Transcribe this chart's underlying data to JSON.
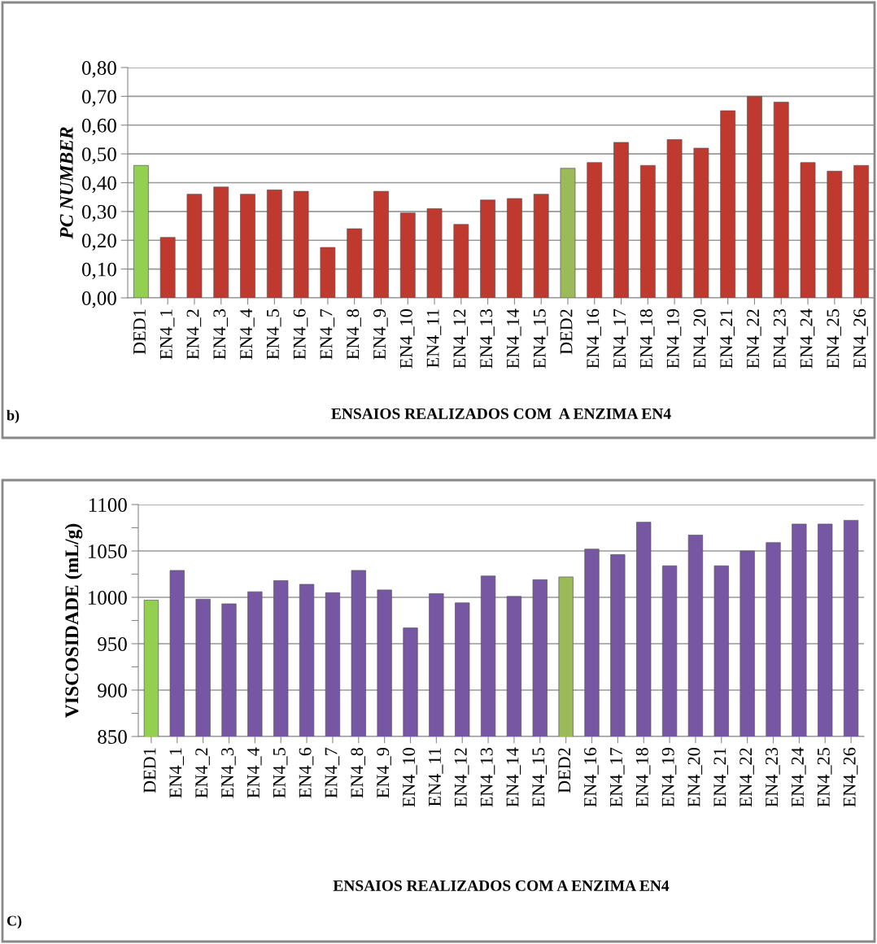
{
  "chart_data": [
    {
      "type": "bar",
      "ylabel": "PC NUMBER",
      "xlabel": "ENSAIOS REALIZADOS COM  A ENZIMA EN4",
      "annotations": [
        "b)"
      ],
      "categories": [
        "DED1",
        "EN4_1",
        "EN4_2",
        "EN4_3",
        "EN4_4",
        "EN4_5",
        "EN4_6",
        "EN4_7",
        "EN4_8",
        "EN4_9",
        "EN4_10",
        "EN4_11",
        "EN4_12",
        "EN4_13",
        "EN4_14",
        "EN4_15",
        "DED2",
        "EN4_16",
        "EN4_17",
        "EN4_18",
        "EN4_19",
        "EN4_20",
        "EN4_21",
        "EN4_22",
        "EN4_23",
        "EN4_24",
        "EN4_25",
        "EN4_26"
      ],
      "values": [
        0.46,
        0.21,
        0.36,
        0.385,
        0.36,
        0.375,
        0.37,
        0.175,
        0.24,
        0.37,
        0.295,
        0.31,
        0.255,
        0.34,
        0.345,
        0.36,
        0.45,
        0.47,
        0.54,
        0.46,
        0.55,
        0.52,
        0.65,
        0.7,
        0.68,
        0.47,
        0.44,
        0.46
      ],
      "colors": [
        "#92d050",
        "#c0392f",
        "#c0392f",
        "#c0392f",
        "#c0392f",
        "#c0392f",
        "#c0392f",
        "#c0392f",
        "#c0392f",
        "#c0392f",
        "#c0392f",
        "#c0392f",
        "#c0392f",
        "#c0392f",
        "#c0392f",
        "#c0392f",
        "#9bbb59",
        "#c0392f",
        "#c0392f",
        "#c0392f",
        "#c0392f",
        "#c0392f",
        "#c0392f",
        "#c0392f",
        "#c0392f",
        "#c0392f",
        "#c0392f",
        "#c0392f"
      ],
      "ylim": [
        0,
        0.8
      ],
      "yticks": [
        {
          "value": 0,
          "label": "0,00"
        },
        {
          "value": 0.1,
          "label": "0,10"
        },
        {
          "value": 0.2,
          "label": "0,20"
        },
        {
          "value": 0.3,
          "label": "0,30"
        },
        {
          "value": 0.4,
          "label": "0,40"
        },
        {
          "value": 0.5,
          "label": "0,50"
        },
        {
          "value": 0.6,
          "label": "0,60"
        },
        {
          "value": 0.7,
          "label": "0,70"
        },
        {
          "value": 0.8,
          "label": "0,80"
        }
      ],
      "grid": "y",
      "legend": false
    },
    {
      "type": "bar",
      "ylabel": "VISCOSIDADE (mL/g)",
      "xlabel": "ENSAIOS REALIZADOS COM A ENZIMA EN4",
      "annotations": [
        "C)"
      ],
      "categories": [
        "DED1",
        "EN4_1",
        "EN4_2",
        "EN4_3",
        "EN4_4",
        "EN4_5",
        "EN4_6",
        "EN4_7",
        "EN4_8",
        "EN4_9",
        "EN4_10",
        "EN4_11",
        "EN4_12",
        "EN4_13",
        "EN4_14",
        "EN4_15",
        "DED2",
        "EN4_16",
        "EN4_17",
        "EN4_18",
        "EN4_19",
        "EN4_20",
        "EN4_21",
        "EN4_22",
        "EN4_23",
        "EN4_24",
        "EN4_25",
        "EN4_26"
      ],
      "values": [
        997,
        1029,
        998,
        993,
        1006,
        1018,
        1014,
        1005,
        1029,
        1008,
        967,
        1004,
        994,
        1023,
        1001,
        1019,
        1022,
        1052,
        1046,
        1081,
        1034,
        1067,
        1034,
        1050,
        1059,
        1079,
        1079,
        1083
      ],
      "colors": [
        "#92d050",
        "#7757a4",
        "#7757a4",
        "#7757a4",
        "#7757a4",
        "#7757a4",
        "#7757a4",
        "#7757a4",
        "#7757a4",
        "#7757a4",
        "#7757a4",
        "#7757a4",
        "#7757a4",
        "#7757a4",
        "#7757a4",
        "#7757a4",
        "#9bbb59",
        "#7757a4",
        "#7757a4",
        "#7757a4",
        "#7757a4",
        "#7757a4",
        "#7757a4",
        "#7757a4",
        "#7757a4",
        "#7757a4",
        "#7757a4",
        "#7757a4"
      ],
      "ylim": [
        850,
        1100
      ],
      "yticks": [
        850,
        {
          "value": 875,
          "label": null
        },
        900,
        {
          "value": 925,
          "label": null
        },
        950,
        {
          "value": 975,
          "label": null
        },
        1000,
        {
          "value": 1025,
          "label": null
        },
        1050,
        {
          "value": 1075,
          "label": null
        },
        1100
      ],
      "grid": "y",
      "legend": false
    }
  ]
}
